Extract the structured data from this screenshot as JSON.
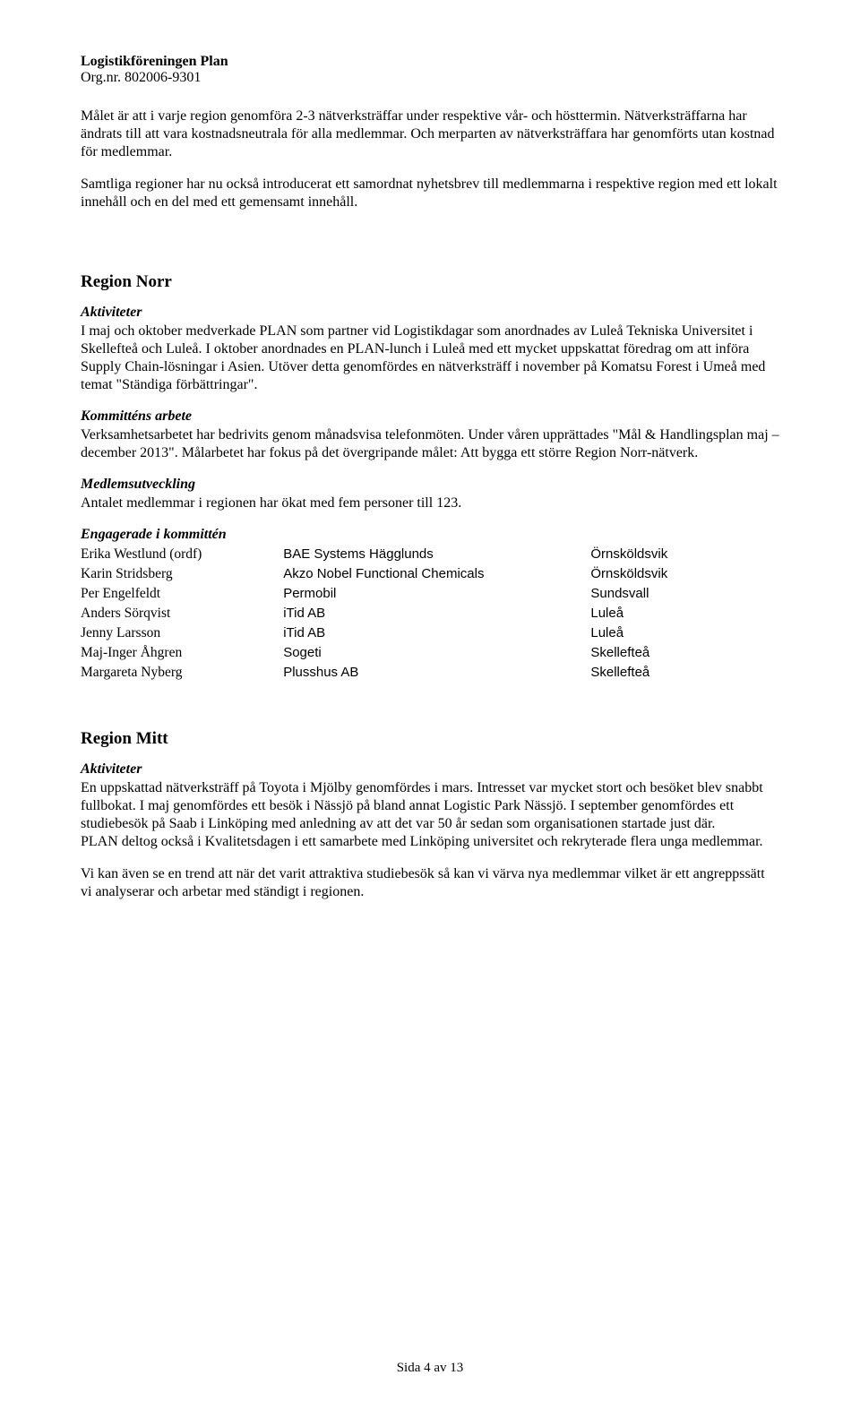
{
  "header": {
    "title": "Logistikföreningen Plan",
    "sub": "Org.nr. 802006-9301"
  },
  "intro": {
    "p1": "Målet är att i varje region genomföra 2-3 nätverksträffar under respektive vår- och hösttermin. Nätverksträffarna har ändrats till att vara kostnadsneutrala för alla medlemmar. Och merparten av nätverksträffara har genomförts utan kostnad för medlemmar.",
    "p2": "Samtliga regioner har nu också introducerat ett samordnat nyhetsbrev till medlemmarna i respektive region med ett lokalt innehåll och en del med ett gemensamt innehåll."
  },
  "region_norr": {
    "heading": "Region Norr",
    "aktiviteter_label": "Aktiviteter",
    "aktiviteter_text": "I maj och oktober medverkade PLAN som partner vid Logistikdagar som anordnades av Luleå Tekniska Universitet i Skellefteå och Luleå. I oktober anordnades en PLAN-lunch i Luleå med ett mycket uppskattat föredrag om att införa Supply Chain-lösningar i Asien. Utöver detta genomfördes en nätverksträff i november på Komatsu Forest i Umeå med temat \"Ständiga förbättringar\".",
    "kommitte_label": "Kommitténs arbete",
    "kommitte_text": "Verksamhetsarbetet har bedrivits genom månadsvisa telefonmöten. Under våren upprättades \"Mål & Handlingsplan maj – december 2013\". Målarbetet har fokus på det övergripande målet: Att bygga ett större Region Norr-nätverk.",
    "medlem_label": "Medlemsutveckling",
    "medlem_text": "Antalet medlemmar i regionen har ökat med fem personer till 123.",
    "engagerade_label": "Engagerade i kommittén",
    "members": [
      {
        "name": "Erika Westlund (ordf)",
        "company": "BAE Systems Hägglunds",
        "city": "Örnsköldsvik"
      },
      {
        "name": "Karin Stridsberg",
        "company": "Akzo Nobel Functional Chemicals",
        "city": "Örnsköldsvik"
      },
      {
        "name": "Per Engelfeldt",
        "company": "Permobil",
        "city": "Sundsvall"
      },
      {
        "name": "Anders Sörqvist",
        "company": "iTid AB",
        "city": "Luleå"
      },
      {
        "name": "Jenny Larsson",
        "company": "iTid AB",
        "city": "Luleå"
      },
      {
        "name": "Maj-Inger Åhgren",
        "company": "Sogeti",
        "city": "Skellefteå"
      },
      {
        "name": "Margareta Nyberg",
        "company": "Plusshus AB",
        "city": "Skellefteå"
      }
    ]
  },
  "region_mitt": {
    "heading": "Region Mitt",
    "aktiviteter_label": "Aktiviteter",
    "p1": "En uppskattad nätverksträff på Toyota i Mjölby genomfördes i mars. Intresset var mycket stort och besöket blev snabbt fullbokat. I maj genomfördes ett besök i Nässjö på bland annat Logistic Park Nässjö. I september genomfördes ett studiebesök på Saab i Linköping med anledning av att det var 50 år sedan som organisationen startade just där.",
    "p2": "PLAN deltog också i Kvalitetsdagen i ett samarbete med Linköping universitet och rekryterade flera unga medlemmar.",
    "p3": "Vi kan även se en trend att när det varit attraktiva studiebesök så kan vi värva nya medlemmar vilket är ett angreppssätt vi analyserar och arbetar med ständigt i regionen."
  },
  "footer": "Sida 4 av 13"
}
